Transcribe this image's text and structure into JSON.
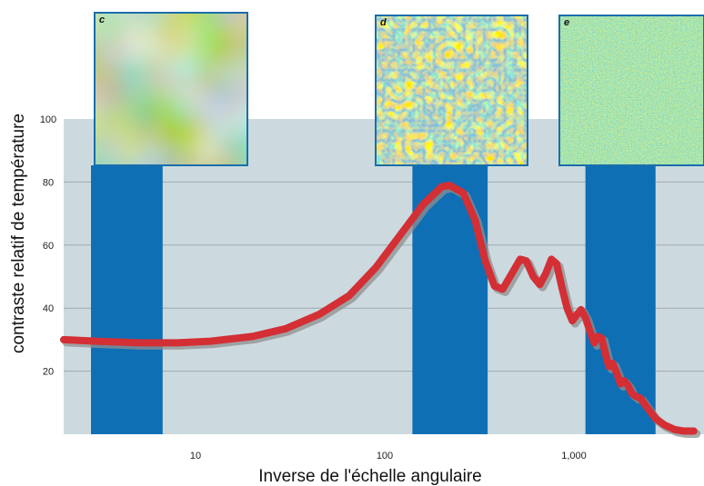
{
  "chart_data": {
    "type": "line",
    "title": "",
    "xlabel": "Inverse de l'échelle angulaire",
    "ylabel": "contraste relatif de température",
    "xscale": "log",
    "xlim": [
      2,
      4300
    ],
    "ylim": [
      0,
      100
    ],
    "x_ticks": [
      {
        "value": 10,
        "label": "10"
      },
      {
        "value": 100,
        "label": "100"
      },
      {
        "value": 1000,
        "label": "1,000"
      }
    ],
    "y_ticks": [
      {
        "value": 20,
        "label": "20"
      },
      {
        "value": 40,
        "label": "40"
      },
      {
        "value": 60,
        "label": "60"
      },
      {
        "value": 80,
        "label": "80"
      },
      {
        "value": 100,
        "label": "100"
      }
    ],
    "grid": "horizontal",
    "series": [
      {
        "line_color": "#d32f35",
        "x": [
          2,
          3,
          5,
          8,
          12,
          20,
          30,
          45,
          65,
          90,
          120,
          160,
          200,
          220,
          260,
          300,
          340,
          380,
          420,
          470,
          520,
          560,
          610,
          660,
          710,
          760,
          810,
          860,
          920,
          980,
          1040,
          1090,
          1150,
          1210,
          1280,
          1340,
          1400,
          1460,
          1530,
          1600,
          1680,
          1760,
          1840,
          1930,
          2020,
          2120,
          2240,
          2400,
          2700,
          3000,
          3400,
          3800,
          4300
        ],
        "y": [
          30,
          29.5,
          29,
          29,
          29.5,
          31,
          33.5,
          38,
          44,
          53,
          63,
          73,
          78.5,
          79,
          76.5,
          68,
          55,
          47,
          46,
          51,
          55.5,
          55,
          50,
          47.5,
          51,
          55.5,
          54,
          47,
          40,
          36,
          38,
          39.5,
          37,
          33,
          29,
          31,
          30.5,
          26,
          21.5,
          22.5,
          19.5,
          16,
          17,
          15.5,
          13,
          12,
          11.5,
          9,
          5,
          3,
          1.5,
          1,
          1
        ]
      }
    ],
    "highlight_bands": [
      {
        "x_range": [
          2.8,
          6.7
        ],
        "color": "#0f6fb5",
        "inset": "c",
        "inset_style": "smooth large-scale blobs"
      },
      {
        "x_range": [
          140,
          350
        ],
        "color": "#0f6fb5",
        "inset": "d",
        "inset_style": "medium-scale speckle"
      },
      {
        "x_range": [
          1150,
          2700
        ],
        "color": "#0f6fb5",
        "inset": "e",
        "inset_style": "fine grain noise"
      }
    ],
    "colors": {
      "plot_background": "#ccdae0",
      "gridline": "#9eaab0",
      "band": "#0f6fb5",
      "curve": "#d32f35",
      "curve_shadow": "#8f8f8f"
    }
  }
}
